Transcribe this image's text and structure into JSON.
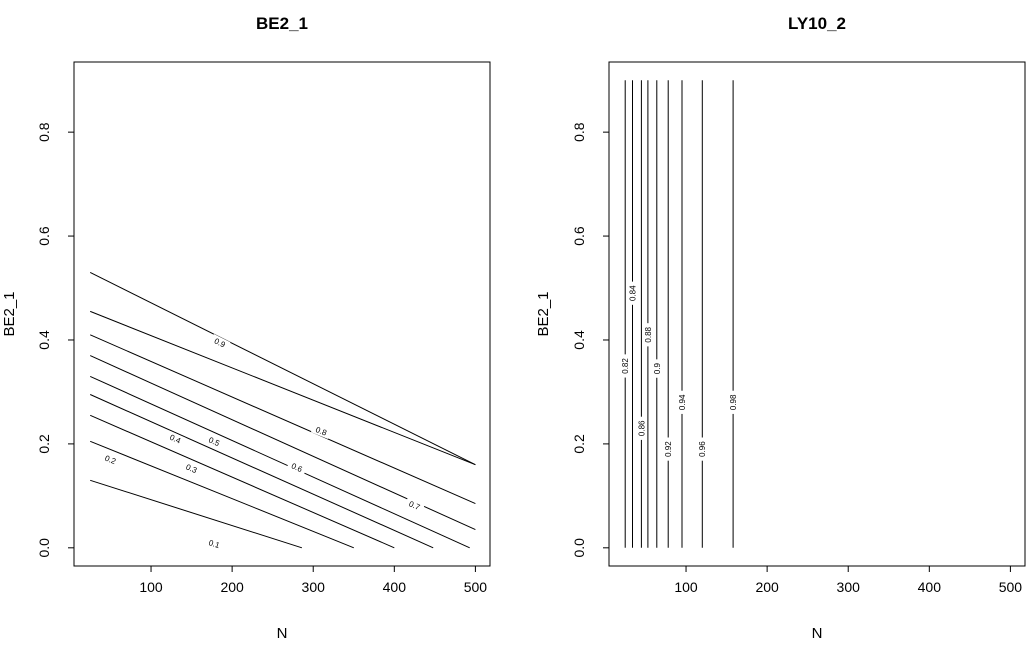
{
  "chart_data": [
    {
      "type": "contour",
      "title": "BE2_1",
      "xlabel": "N",
      "ylabel": "BE2_1",
      "xlim": [
        5,
        518
      ],
      "ylim": [
        -0.035,
        0.935
      ],
      "x_ticks": [
        100,
        200,
        300,
        400,
        500
      ],
      "y_ticks": [
        0.0,
        0.2,
        0.4,
        0.6,
        0.8
      ],
      "x_tick_labels": [
        "100",
        "200",
        "300",
        "400",
        "500"
      ],
      "y_tick_labels": [
        "0.0",
        "0.2",
        "0.4",
        "0.6",
        "0.8"
      ],
      "contours": [
        {
          "level": "0.1",
          "points": [
            [
              25,
              0.13
            ],
            [
              286,
              0.0
            ]
          ]
        },
        {
          "level": "0.2",
          "points": [
            [
              25,
              0.205
            ],
            [
              350,
              0.0
            ]
          ]
        },
        {
          "level": "0.3",
          "points": [
            [
              25,
              0.255
            ],
            [
              400,
              0.0
            ]
          ]
        },
        {
          "level": "0.4",
          "points": [
            [
              25,
              0.295
            ],
            [
              448,
              0.0
            ]
          ]
        },
        {
          "level": "0.5",
          "points": [
            [
              25,
              0.33
            ],
            [
              493,
              0.0
            ]
          ]
        },
        {
          "level": "0.6",
          "points": [
            [
              25,
              0.37
            ],
            [
              500,
              0.035
            ]
          ]
        },
        {
          "level": "0.7",
          "points": [
            [
              25,
              0.41
            ],
            [
              500,
              0.085
            ]
          ]
        },
        {
          "level": "0.8",
          "points": [
            [
              25,
              0.455
            ],
            [
              500,
              0.16
            ]
          ]
        },
        {
          "level": "0.9",
          "points": [
            [
              25,
              0.53
            ],
            [
              500,
              0.16
            ]
          ]
        }
      ],
      "labels": [
        {
          "text": "0.1",
          "x": 178,
          "y": 0.008
        },
        {
          "text": "0.2",
          "x": 50,
          "y": 0.17
        },
        {
          "text": "0.3",
          "x": 150,
          "y": 0.153
        },
        {
          "text": "0.4",
          "x": 130,
          "y": 0.21
        },
        {
          "text": "0.5",
          "x": 178,
          "y": 0.205
        },
        {
          "text": "0.6",
          "x": 280,
          "y": 0.155
        },
        {
          "text": "0.7",
          "x": 425,
          "y": 0.082
        },
        {
          "text": "0.8",
          "x": 310,
          "y": 0.225
        },
        {
          "text": "0.9",
          "x": 185,
          "y": 0.395
        }
      ]
    },
    {
      "type": "contour",
      "title": "LY10_2",
      "xlabel": "N",
      "ylabel": "BE2_1",
      "xlim": [
        5,
        518
      ],
      "ylim": [
        -0.035,
        0.935
      ],
      "x_ticks": [
        100,
        200,
        300,
        400,
        500
      ],
      "y_ticks": [
        0.0,
        0.2,
        0.4,
        0.6,
        0.8
      ],
      "x_tick_labels": [
        "100",
        "200",
        "300",
        "400",
        "500"
      ],
      "y_tick_labels": [
        "0.0",
        "0.2",
        "0.4",
        "0.6",
        "0.8"
      ],
      "contours": [
        {
          "level": "0.82",
          "points": [
            [
              25,
              0.0
            ],
            [
              25,
              0.9
            ]
          ]
        },
        {
          "level": "0.84",
          "points": [
            [
              34,
              0.0
            ],
            [
              34,
              0.9
            ]
          ]
        },
        {
          "level": "0.86",
          "points": [
            [
              45,
              0.0
            ],
            [
              45,
              0.9
            ]
          ]
        },
        {
          "level": "0.88",
          "points": [
            [
              53,
              0.0
            ],
            [
              53,
              0.9
            ]
          ]
        },
        {
          "level": "0.9",
          "points": [
            [
              64,
              0.0
            ],
            [
              64,
              0.9
            ]
          ]
        },
        {
          "level": "0.92",
          "points": [
            [
              78,
              0.0
            ],
            [
              78,
              0.9
            ]
          ]
        },
        {
          "level": "0.94",
          "points": [
            [
              95,
              0.0
            ],
            [
              95,
              0.9
            ]
          ]
        },
        {
          "level": "0.96",
          "points": [
            [
              120,
              0.0
            ],
            [
              120,
              0.9
            ]
          ]
        },
        {
          "level": "0.98",
          "points": [
            [
              158,
              0.0
            ],
            [
              158,
              0.9
            ]
          ]
        }
      ],
      "labels": [
        {
          "text": "0.82",
          "x": 25,
          "y": 0.35
        },
        {
          "text": "0.84",
          "x": 34,
          "y": 0.49
        },
        {
          "text": "0.86",
          "x": 45,
          "y": 0.23
        },
        {
          "text": "0.88",
          "x": 53,
          "y": 0.41
        },
        {
          "text": "0.9",
          "x": 64,
          "y": 0.345
        },
        {
          "text": "0.92",
          "x": 78,
          "y": 0.19
        },
        {
          "text": "0.94",
          "x": 95,
          "y": 0.28
        },
        {
          "text": "0.96",
          "x": 120,
          "y": 0.19
        },
        {
          "text": "0.98",
          "x": 158,
          "y": 0.28
        }
      ]
    }
  ]
}
